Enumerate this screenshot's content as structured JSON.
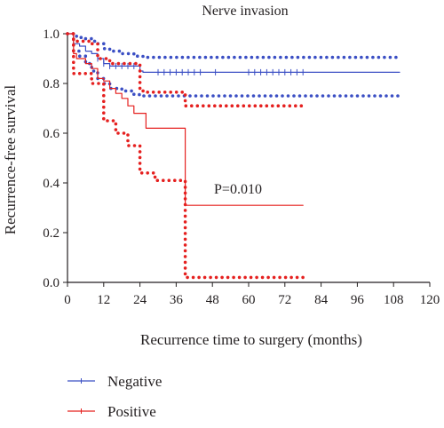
{
  "chart_data": {
    "type": "line",
    "subtype": "kaplan-meier",
    "title": "Nerve invasion",
    "xlabel": "Recurrence time to surgery (months)",
    "ylabel": "Recurrence-free survival",
    "xlim": [
      0,
      120
    ],
    "ylim": [
      0,
      1.0
    ],
    "xticks": [
      "0",
      "12",
      "24",
      "36",
      "48",
      "60",
      "72",
      "84",
      "96",
      "108",
      "120"
    ],
    "yticks": [
      "0.0",
      "0.2",
      "0.4",
      "0.6",
      "0.8",
      "1.0"
    ],
    "grid": false,
    "legend_position": "bottom-left",
    "annotation": "P=0.010",
    "colors": {
      "negative": "#3b4fc4",
      "positive": "#e5201f"
    },
    "series": [
      {
        "name": "Negative",
        "style": "solid",
        "x": [
          0,
          2,
          4,
          6,
          8,
          10,
          12,
          14,
          17,
          22,
          24,
          25,
          110
        ],
        "y": [
          1.0,
          0.96,
          0.95,
          0.93,
          0.92,
          0.9,
          0.88,
          0.87,
          0.87,
          0.87,
          0.85,
          0.845,
          0.845
        ],
        "censor_x": [
          10,
          12,
          14,
          16,
          18,
          20,
          22,
          30,
          32,
          34,
          36,
          38,
          40,
          42,
          44,
          49,
          60,
          62,
          64,
          66,
          68,
          70,
          72,
          74,
          76,
          78
        ]
      },
      {
        "name": "Negative 95% CI upper",
        "style": "dotted",
        "x": [
          0,
          2,
          4,
          6,
          8,
          10,
          12,
          14,
          18,
          22,
          25,
          110
        ],
        "y": [
          1.0,
          0.99,
          0.985,
          0.98,
          0.97,
          0.96,
          0.94,
          0.93,
          0.92,
          0.91,
          0.905,
          0.905
        ]
      },
      {
        "name": "Negative 95% CI lower",
        "style": "dotted",
        "x": [
          0,
          2,
          4,
          6,
          8,
          10,
          12,
          14,
          18,
          22,
          25,
          110
        ],
        "y": [
          1.0,
          0.93,
          0.91,
          0.88,
          0.85,
          0.82,
          0.8,
          0.78,
          0.77,
          0.755,
          0.75,
          0.75
        ]
      },
      {
        "name": "Positive",
        "style": "solid",
        "x": [
          0,
          2,
          3,
          6,
          8,
          10,
          12,
          14,
          16,
          18,
          20,
          22,
          26,
          38,
          39,
          78
        ],
        "y": [
          1.0,
          0.92,
          0.9,
          0.88,
          0.86,
          0.82,
          0.81,
          0.78,
          0.76,
          0.74,
          0.71,
          0.68,
          0.62,
          0.62,
          0.31,
          0.31
        ]
      },
      {
        "name": "Positive 95% CI upper",
        "style": "dotted",
        "x": [
          0,
          2,
          8,
          10,
          14,
          24,
          26,
          38,
          39,
          78
        ],
        "y": [
          1.0,
          0.97,
          0.96,
          0.9,
          0.88,
          0.77,
          0.765,
          0.765,
          0.71,
          0.71
        ]
      },
      {
        "name": "Positive 95% CI lower",
        "style": "dotted",
        "x": [
          0,
          2,
          8,
          12,
          16,
          20,
          24,
          29,
          38,
          39,
          78
        ],
        "y": [
          1.0,
          0.84,
          0.8,
          0.65,
          0.6,
          0.55,
          0.44,
          0.41,
          0.41,
          0.02,
          0.02
        ]
      }
    ],
    "legend": [
      {
        "label": "Negative"
      },
      {
        "label": "Positive"
      }
    ]
  }
}
